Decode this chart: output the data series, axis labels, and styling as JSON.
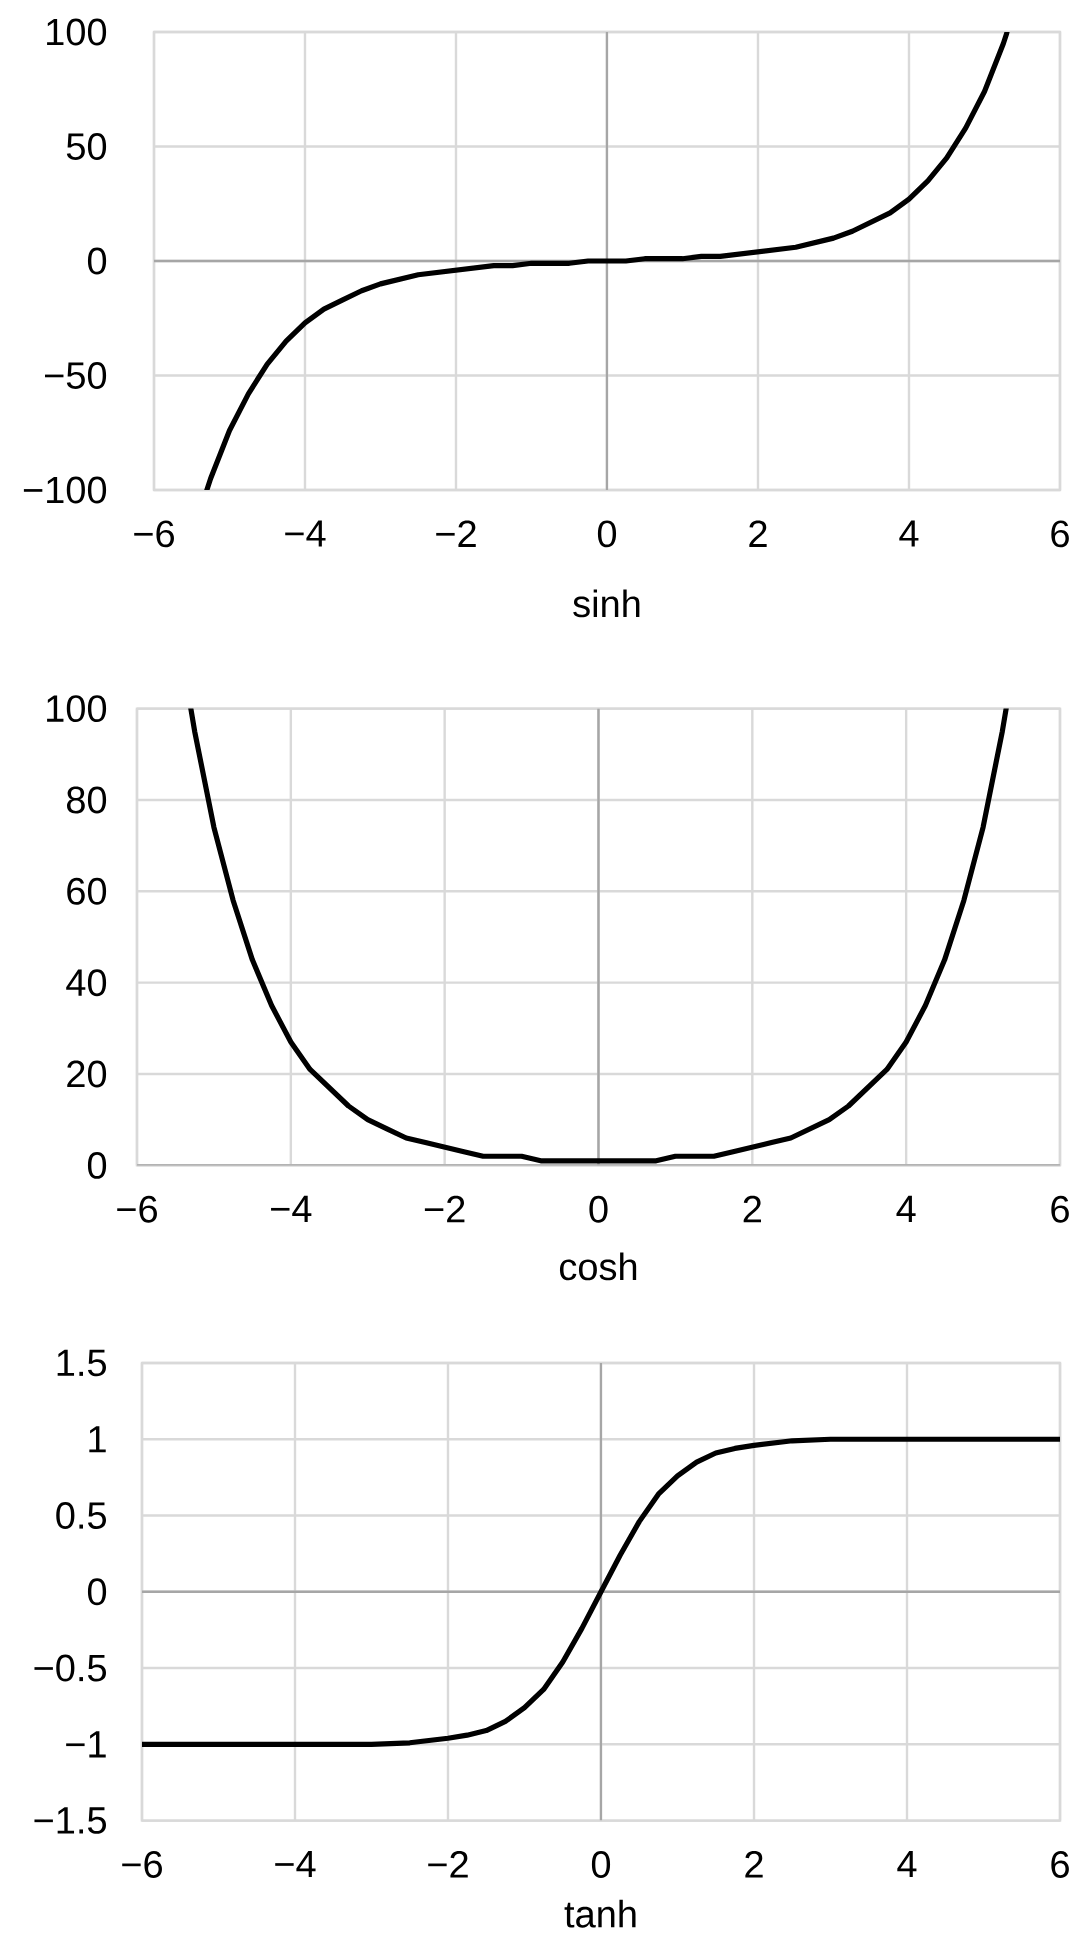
{
  "chart_data": [
    {
      "type": "line",
      "xlabel": "sinh",
      "grid": true,
      "xlim": [
        -6,
        6
      ],
      "ylim": [
        -100,
        100
      ],
      "xticks": [
        {
          "value": -6,
          "label": "−6"
        },
        {
          "value": -4,
          "label": "−4"
        },
        {
          "value": -2,
          "label": "−2"
        },
        0,
        2,
        4,
        6
      ],
      "yticks": [
        {
          "value": -100,
          "label": "−100"
        },
        {
          "value": -50,
          "label": "−50"
        },
        0,
        50,
        100
      ],
      "x": [
        -5.3,
        -5.25,
        -5,
        -4.75,
        -4.5,
        -4.25,
        -4,
        -3.75,
        -3.5,
        -3.25,
        -3,
        -2.75,
        -2.5,
        -2.25,
        -2,
        -1.75,
        -1.5,
        -1.25,
        -1,
        -0.75,
        -0.5,
        -0.25,
        0,
        0.25,
        0.5,
        0.75,
        1,
        1.25,
        1.5,
        1.75,
        2,
        2.25,
        2.5,
        2.75,
        3,
        3.25,
        3.5,
        3.75,
        4,
        4.25,
        4.5,
        4.75,
        5,
        5.25,
        5.3
      ],
      "series": [
        {
          "color": "#000000",
          "values": [
            -100,
            -95,
            -74,
            -58,
            -45,
            -35,
            -27,
            -21,
            -17,
            -13,
            -10,
            -8,
            -6,
            -5,
            -4,
            -3,
            -2,
            -2,
            -1,
            -1,
            -1,
            0,
            0,
            0,
            1,
            1,
            1,
            2,
            2,
            3,
            4,
            5,
            6,
            8,
            10,
            13,
            17,
            21,
            27,
            35,
            45,
            58,
            74,
            95,
            100
          ]
        }
      ]
    },
    {
      "type": "line",
      "xlabel": "cosh",
      "grid": true,
      "xlim": [
        -6,
        6
      ],
      "ylim": [
        0,
        100
      ],
      "xticks": [
        {
          "value": -6,
          "label": "−6"
        },
        {
          "value": -4,
          "label": "−4"
        },
        {
          "value": -2,
          "label": "−2"
        },
        0,
        2,
        4,
        6
      ],
      "yticks": [
        0,
        20,
        40,
        60,
        80,
        100
      ],
      "x": [
        -5.3,
        -5.25,
        -5,
        -4.75,
        -4.5,
        -4.25,
        -4,
        -3.75,
        -3.5,
        -3.25,
        -3,
        -2.75,
        -2.5,
        -2.25,
        -2,
        -1.75,
        -1.5,
        -1.25,
        -1,
        -0.75,
        -0.5,
        -0.25,
        0,
        0.25,
        0.5,
        0.75,
        1,
        1.25,
        1.5,
        1.75,
        2,
        2.25,
        2.5,
        2.75,
        3,
        3.25,
        3.5,
        3.75,
        4,
        4.25,
        4.5,
        4.75,
        5,
        5.25,
        5.3
      ],
      "series": [
        {
          "color": "#000000",
          "values": [
            100,
            95,
            74,
            58,
            45,
            35,
            27,
            21,
            17,
            13,
            10,
            8,
            6,
            5,
            4,
            3,
            2,
            2,
            2,
            1,
            1,
            1,
            1,
            1,
            1,
            1,
            2,
            2,
            2,
            3,
            4,
            5,
            6,
            8,
            10,
            13,
            17,
            21,
            27,
            35,
            45,
            58,
            74,
            95,
            100
          ]
        }
      ]
    },
    {
      "type": "line",
      "xlabel": "tanh",
      "grid": true,
      "xlim": [
        -6,
        6
      ],
      "ylim": [
        -1.5,
        1.5
      ],
      "xticks": [
        {
          "value": -6,
          "label": "−6"
        },
        {
          "value": -4,
          "label": "−4"
        },
        {
          "value": -2,
          "label": "−2"
        },
        0,
        2,
        4,
        6
      ],
      "yticks": [
        {
          "value": -1.5,
          "label": "−1.5"
        },
        {
          "value": -1,
          "label": "−1"
        },
        {
          "value": -0.5,
          "label": "−0.5"
        },
        0,
        0.5,
        1,
        1.5
      ],
      "x": [
        -6,
        -5,
        -4,
        -3.5,
        -3,
        -2.5,
        -2,
        -1.75,
        -1.5,
        -1.25,
        -1,
        -0.75,
        -0.5,
        -0.25,
        0,
        0.25,
        0.5,
        0.75,
        1,
        1.25,
        1.5,
        1.75,
        2,
        2.5,
        3,
        3.5,
        4,
        5,
        6
      ],
      "series": [
        {
          "color": "#000000",
          "values": [
            -1,
            -1,
            -1,
            -1,
            -1,
            -0.99,
            -0.96,
            -0.94,
            -0.91,
            -0.85,
            -0.76,
            -0.64,
            -0.46,
            -0.24,
            0,
            0.24,
            0.46,
            0.64,
            0.76,
            0.85,
            0.91,
            0.94,
            0.96,
            0.99,
            1,
            1,
            1,
            1,
            1
          ]
        }
      ]
    }
  ]
}
